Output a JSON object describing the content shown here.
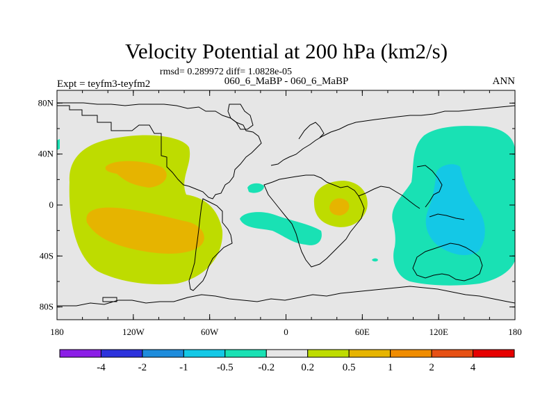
{
  "title": "Velocity Potential at 200 hPa (km2/s)",
  "stats": "rmsd= 0.289972 diff= 1.0828e-05",
  "expt": "Expt = teyfm3-teyfm2",
  "case": "060_6_MaBP - 060_6_MaBP",
  "season": "ANN",
  "colors": {
    "land_bg": "#e6e6e6",
    "lev_neg4": "#8b1ee6",
    "lev_neg2": "#2d32dc",
    "lev_neg1": "#1e8cdc",
    "lev_neg05": "#14c8e6",
    "lev_neg02": "#19e1b4",
    "lev_0": "#e6e6e6",
    "lev_02": "#bedc00",
    "lev_05": "#e6b400",
    "lev_1": "#f08c00",
    "lev_2": "#e65014",
    "lev_4": "#e60000"
  },
  "map": {
    "lat_ticks": [
      "80N",
      "40N",
      "0",
      "40S",
      "80S"
    ],
    "lat_values": [
      80,
      40,
      0,
      -40,
      -80
    ],
    "lon_ticks": [
      "180",
      "120W",
      "60W",
      "0",
      "60E",
      "120E",
      "180"
    ],
    "lon_values": [
      -180,
      -120,
      -60,
      0,
      60,
      120,
      180
    ]
  },
  "colorbar": {
    "labels": [
      "-4",
      "-2",
      "-1",
      "-0.5",
      "-0.2",
      "0.2",
      "0.5",
      "1",
      "2",
      "4"
    ]
  }
}
